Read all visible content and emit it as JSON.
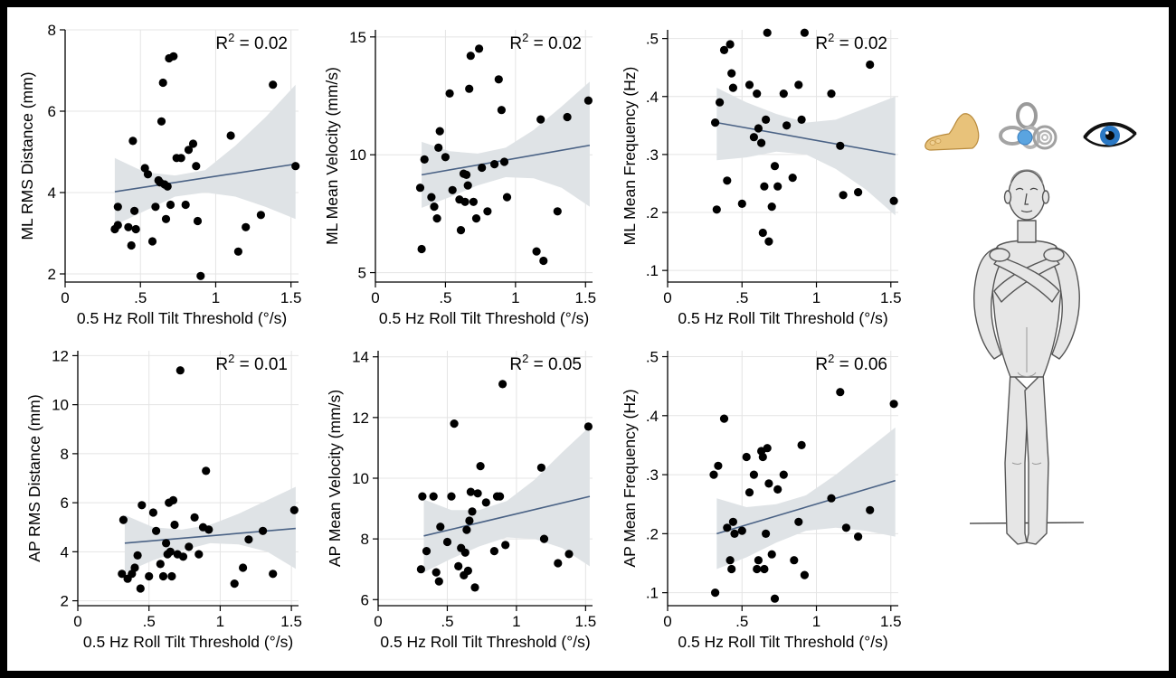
{
  "chart_data": [
    {
      "type": "scatter",
      "id": "ml-rms",
      "xlabel": "0.5 Hz Roll Tilt Threshold (°/s)",
      "ylabel": "ML RMS Distance (mm)",
      "r2_label": "R",
      "r2_sup": "2",
      "r2_value": " = 0.02",
      "xlim": [
        0,
        1.55
      ],
      "ylim": [
        1.8,
        8.0
      ],
      "xticks": [
        0,
        0.5,
        1,
        1.5
      ],
      "xtick_labels": [
        "0",
        ".5",
        "1",
        "1.5"
      ],
      "yticks": [
        2,
        4,
        6,
        8
      ],
      "ytick_labels": [
        "2",
        "4",
        "6",
        "8"
      ],
      "fit": {
        "x": [
          0.33,
          1.53
        ],
        "y": [
          4.02,
          4.7
        ]
      },
      "ci_upper": [
        4.85,
        4.5,
        4.42,
        4.55,
        5.15,
        5.85,
        6.65
      ],
      "ci_lower": [
        3.2,
        3.55,
        3.9,
        4.0,
        3.9,
        3.65,
        3.35
      ],
      "points": {
        "x": [
          0.33,
          0.35,
          0.42,
          0.44,
          0.45,
          0.46,
          0.35,
          0.47,
          0.53,
          0.55,
          0.58,
          0.6,
          0.62,
          0.63,
          0.64,
          0.65,
          0.66,
          0.67,
          0.68,
          0.69,
          0.7,
          0.72,
          0.74,
          0.77,
          0.8,
          0.82,
          0.85,
          0.87,
          0.88,
          0.9,
          1.1,
          1.15,
          1.2,
          1.3,
          1.38,
          1.53
        ],
        "y": [
          3.1,
          3.2,
          3.15,
          2.7,
          5.27,
          3.55,
          3.65,
          3.1,
          4.6,
          4.45,
          2.8,
          3.65,
          4.3,
          4.25,
          5.75,
          6.7,
          4.2,
          3.35,
          4.15,
          7.3,
          3.7,
          7.35,
          4.85,
          4.85,
          3.7,
          5.05,
          5.2,
          4.65,
          3.3,
          1.95,
          5.4,
          2.55,
          3.15,
          3.45,
          6.65,
          4.65
        ]
      }
    },
    {
      "type": "scatter",
      "id": "ml-velocity",
      "xlabel": "0.5 Hz Roll Tilt Threshold (°/s)",
      "ylabel": "ML Mean Velocity (mm/s)",
      "r2_label": "R",
      "r2_sup": "2",
      "r2_value": " = 0.02",
      "xlim": [
        0,
        1.55
      ],
      "ylim": [
        4.6,
        15.3
      ],
      "xticks": [
        0,
        0.5,
        1,
        1.5
      ],
      "xtick_labels": [
        "0",
        ".5",
        "1",
        "1.5"
      ],
      "yticks": [
        5,
        10,
        15
      ],
      "ytick_labels": [
        "5",
        "10",
        "15"
      ],
      "fit": {
        "x": [
          0.33,
          1.53
        ],
        "y": [
          9.15,
          10.4
        ]
      },
      "ci_upper": [
        10.55,
        10.15,
        10.05,
        10.3,
        11.05,
        12.05,
        13.1
      ],
      "ci_lower": [
        7.75,
        8.2,
        8.7,
        9.05,
        9.0,
        8.6,
        7.8
      ],
      "points": {
        "x": [
          0.32,
          0.33,
          0.35,
          0.4,
          0.42,
          0.44,
          0.45,
          0.46,
          0.5,
          0.53,
          0.55,
          0.6,
          0.61,
          0.63,
          0.64,
          0.65,
          0.66,
          0.67,
          0.68,
          0.7,
          0.72,
          0.74,
          0.76,
          0.8,
          0.85,
          0.88,
          0.9,
          0.92,
          0.94,
          1.15,
          1.18,
          1.2,
          1.3,
          1.37,
          1.52
        ],
        "y": [
          8.6,
          6.0,
          9.8,
          8.2,
          7.8,
          7.3,
          10.3,
          11.0,
          9.9,
          12.6,
          8.5,
          8.1,
          6.8,
          9.2,
          8.0,
          9.15,
          8.7,
          12.8,
          14.2,
          8.0,
          7.3,
          14.5,
          9.45,
          7.6,
          9.6,
          13.2,
          11.9,
          9.7,
          8.2,
          5.9,
          11.5,
          5.5,
          7.6,
          11.6,
          12.3
        ]
      }
    },
    {
      "type": "scatter",
      "id": "ml-frequency",
      "xlabel": "0.5 Hz Roll Tilt Threshold (°/s)",
      "ylabel": "ML Mean Frequency (Hz)",
      "r2_label": "R",
      "r2_sup": "2",
      "r2_value": " = 0.02",
      "xlim": [
        0,
        1.55
      ],
      "ylim": [
        0.08,
        0.515
      ],
      "xticks": [
        0,
        0.5,
        1,
        1.5
      ],
      "xtick_labels": [
        "0",
        ".5",
        "1",
        "1.5"
      ],
      "yticks": [
        0.1,
        0.2,
        0.3,
        0.4,
        0.5
      ],
      "ytick_labels": [
        ".1",
        ".2",
        ".3",
        ".4",
        ".5"
      ],
      "fit": {
        "x": [
          0.33,
          1.53
        ],
        "y": [
          0.355,
          0.3
        ]
      },
      "ci_upper": [
        0.415,
        0.39,
        0.37,
        0.355,
        0.36,
        0.38,
        0.4
      ],
      "ci_lower": [
        0.29,
        0.295,
        0.305,
        0.3,
        0.275,
        0.24,
        0.195
      ],
      "points": {
        "x": [
          0.32,
          0.33,
          0.35,
          0.38,
          0.4,
          0.42,
          0.43,
          0.44,
          0.5,
          0.55,
          0.58,
          0.6,
          0.61,
          0.63,
          0.64,
          0.65,
          0.66,
          0.67,
          0.68,
          0.7,
          0.72,
          0.74,
          0.78,
          0.8,
          0.84,
          0.88,
          0.9,
          0.92,
          1.1,
          1.16,
          1.18,
          1.28,
          1.36,
          1.52
        ],
        "y": [
          0.355,
          0.205,
          0.39,
          0.48,
          0.255,
          0.49,
          0.44,
          0.415,
          0.215,
          0.42,
          0.33,
          0.405,
          0.345,
          0.32,
          0.165,
          0.245,
          0.36,
          0.51,
          0.15,
          0.21,
          0.28,
          0.245,
          0.405,
          0.35,
          0.26,
          0.42,
          0.36,
          0.51,
          0.405,
          0.315,
          0.23,
          0.235,
          0.455,
          0.22
        ]
      }
    },
    {
      "type": "scatter",
      "id": "ap-rms",
      "xlabel": "0.5 Hz Roll Tilt Threshold (°/s)",
      "ylabel": "AP RMS Distance (mm)",
      "r2_label": "R",
      "r2_sup": "2",
      "r2_value": " = 0.01",
      "xlim": [
        0,
        1.55
      ],
      "ylim": [
        1.8,
        12.2
      ],
      "xticks": [
        0,
        0.5,
        1,
        1.5
      ],
      "xtick_labels": [
        "0",
        ".5",
        "1",
        "1.5"
      ],
      "yticks": [
        2,
        4,
        6,
        8,
        10,
        12
      ],
      "ytick_labels": [
        "2",
        "4",
        "6",
        "8",
        "10",
        "12"
      ],
      "fit": {
        "x": [
          0.33,
          1.53
        ],
        "y": [
          4.35,
          4.95
        ]
      },
      "ci_upper": [
        5.5,
        5.0,
        4.9,
        5.1,
        5.55,
        6.1,
        6.65
      ],
      "ci_lower": [
        3.15,
        3.65,
        4.05,
        4.35,
        4.3,
        4.0,
        3.3
      ],
      "points": {
        "x": [
          0.31,
          0.32,
          0.35,
          0.38,
          0.4,
          0.42,
          0.44,
          0.45,
          0.5,
          0.53,
          0.55,
          0.58,
          0.6,
          0.62,
          0.63,
          0.64,
          0.65,
          0.66,
          0.67,
          0.68,
          0.7,
          0.72,
          0.74,
          0.78,
          0.82,
          0.85,
          0.88,
          0.9,
          0.92,
          1.1,
          1.16,
          1.2,
          1.3,
          1.37,
          1.52
        ],
        "y": [
          3.1,
          5.3,
          2.9,
          3.1,
          3.35,
          3.85,
          2.5,
          5.9,
          3.0,
          5.6,
          4.85,
          3.5,
          3.0,
          4.35,
          3.9,
          6.0,
          4.0,
          3.0,
          6.1,
          5.1,
          3.9,
          11.4,
          3.8,
          4.2,
          5.4,
          3.9,
          5.0,
          7.3,
          4.9,
          2.7,
          3.35,
          4.5,
          4.85,
          3.1,
          5.7
        ]
      }
    },
    {
      "type": "scatter",
      "id": "ap-velocity",
      "xlabel": "0.5 Hz Roll Tilt Threshold (°/s)",
      "ylabel": "AP Mean Velocity (mm/s)",
      "r2_label": "R",
      "r2_sup": "2",
      "r2_value": " = 0.05",
      "xlim": [
        0,
        1.55
      ],
      "ylim": [
        5.8,
        14.2
      ],
      "xticks": [
        0,
        0.5,
        1,
        1.5
      ],
      "xtick_labels": [
        "0",
        ".5",
        "1",
        "1.5"
      ],
      "yticks": [
        6,
        8,
        10,
        12,
        14
      ],
      "ytick_labels": [
        "6",
        "8",
        "10",
        "12",
        "14"
      ],
      "fit": {
        "x": [
          0.33,
          1.53
        ],
        "y": [
          8.1,
          9.4
        ]
      },
      "ci_upper": [
        9.3,
        8.95,
        8.95,
        9.25,
        9.95,
        10.85,
        11.7
      ],
      "ci_lower": [
        6.9,
        7.35,
        7.75,
        8.05,
        8.0,
        7.7,
        7.1
      ],
      "points": {
        "x": [
          0.31,
          0.32,
          0.35,
          0.4,
          0.42,
          0.44,
          0.45,
          0.5,
          0.53,
          0.55,
          0.58,
          0.6,
          0.62,
          0.63,
          0.64,
          0.65,
          0.66,
          0.67,
          0.68,
          0.7,
          0.72,
          0.74,
          0.78,
          0.84,
          0.86,
          0.88,
          0.9,
          0.92,
          1.18,
          1.2,
          1.3,
          1.38,
          1.52
        ],
        "y": [
          7.0,
          9.4,
          7.6,
          9.4,
          6.9,
          6.6,
          8.4,
          7.9,
          9.4,
          11.8,
          7.1,
          7.7,
          6.8,
          7.55,
          8.3,
          6.95,
          8.6,
          9.55,
          8.9,
          6.4,
          9.5,
          10.4,
          9.2,
          7.6,
          9.4,
          9.4,
          13.1,
          7.8,
          10.35,
          8.0,
          7.2,
          7.5,
          11.7
        ]
      }
    },
    {
      "type": "scatter",
      "id": "ap-frequency",
      "xlabel": "0.5 Hz Roll Tilt Threshold (°/s)",
      "ylabel": "AP Mean Frequency (Hz)",
      "r2_label": "R",
      "r2_sup": "2",
      "r2_value": " = 0.06",
      "xlim": [
        0,
        1.55
      ],
      "ylim": [
        0.078,
        0.51
      ],
      "xticks": [
        0,
        0.5,
        1,
        1.5
      ],
      "xtick_labels": [
        "0",
        ".5",
        "1",
        "1.5"
      ],
      "yticks": [
        0.1,
        0.2,
        0.3,
        0.4,
        0.5
      ],
      "ytick_labels": [
        ".1",
        ".2",
        ".3",
        ".4",
        ".5"
      ],
      "fit": {
        "x": [
          0.33,
          1.53
        ],
        "y": [
          0.2,
          0.29
        ]
      },
      "ci_upper": [
        0.26,
        0.245,
        0.25,
        0.265,
        0.3,
        0.34,
        0.38
      ],
      "ci_lower": [
        0.14,
        0.16,
        0.185,
        0.205,
        0.21,
        0.205,
        0.195
      ],
      "points": {
        "x": [
          0.31,
          0.32,
          0.34,
          0.38,
          0.4,
          0.42,
          0.43,
          0.44,
          0.45,
          0.5,
          0.53,
          0.55,
          0.58,
          0.6,
          0.61,
          0.63,
          0.64,
          0.65,
          0.66,
          0.67,
          0.68,
          0.7,
          0.72,
          0.74,
          0.78,
          0.85,
          0.88,
          0.9,
          0.92,
          1.1,
          1.16,
          1.2,
          1.28,
          1.36,
          1.52
        ],
        "y": [
          0.3,
          0.1,
          0.315,
          0.395,
          0.21,
          0.155,
          0.14,
          0.22,
          0.2,
          0.205,
          0.33,
          0.27,
          0.3,
          0.14,
          0.155,
          0.34,
          0.33,
          0.14,
          0.2,
          0.345,
          0.285,
          0.165,
          0.09,
          0.275,
          0.3,
          0.155,
          0.22,
          0.35,
          0.13,
          0.26,
          0.44,
          0.21,
          0.195,
          0.24,
          0.42
        ]
      }
    }
  ],
  "illustration": {
    "icons": [
      "foot-icon",
      "inner-ear-icon",
      "eye-icon"
    ],
    "figure": "human-figure-arms-crossed"
  }
}
